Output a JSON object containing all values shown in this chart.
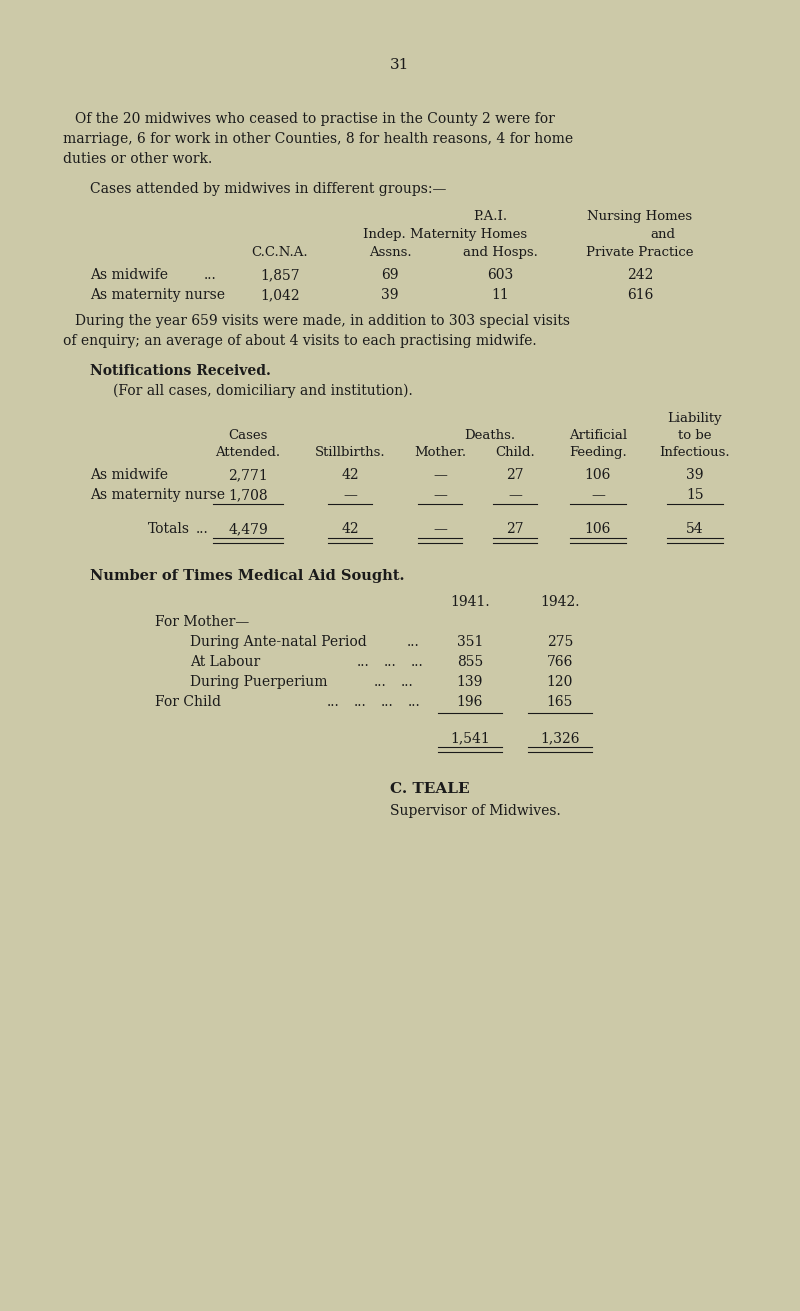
{
  "page_number": "31",
  "bg_color": "#ccc9a8",
  "text_color": "#1a1a1a",
  "page_width": 8.0,
  "page_height": 13.11,
  "para1_lines": [
    "Of the 20 midwives who ceased to practise in the County 2 were for",
    "marriage, 6 for work in other Counties, 8 for health reasons, 4 for home",
    "duties or other work."
  ],
  "cases_heading": "Cases attended by midwives in different groups:—",
  "visits_lines": [
    "During the year 659 visits were made, in addition to 303 special visits",
    "of enquiry; an average of about 4 visits to each practising midwife."
  ],
  "notif_heading": "Notifications Received.",
  "notif_subheading": "(For all cases, domiciliary and institution).",
  "medical_heading": "Number of Times Medical Aid Sought.",
  "medical_col1": "1941.",
  "medical_col2": "1942.",
  "medical_total_1941": "1,541",
  "medical_total_1942": "1,326",
  "signature_name": "C. TEALE",
  "signature_title": "Supervisor of Midwives."
}
